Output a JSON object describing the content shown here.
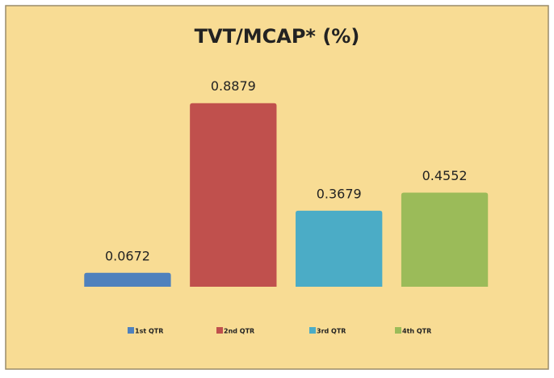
{
  "chart_data": {
    "type": "bar",
    "title": "TVT/MCAP*  (%)",
    "categories": [
      "1st QTR",
      "2nd QTR",
      "3rd QTR",
      "4th QTR"
    ],
    "values": [
      0.0672,
      0.8879,
      0.3679,
      0.4552
    ],
    "colors": [
      "#4f81bd",
      "#c0504d",
      "#4bacc6",
      "#9bbb59"
    ],
    "ylim": [
      0,
      1
    ],
    "legend": "bottom"
  }
}
